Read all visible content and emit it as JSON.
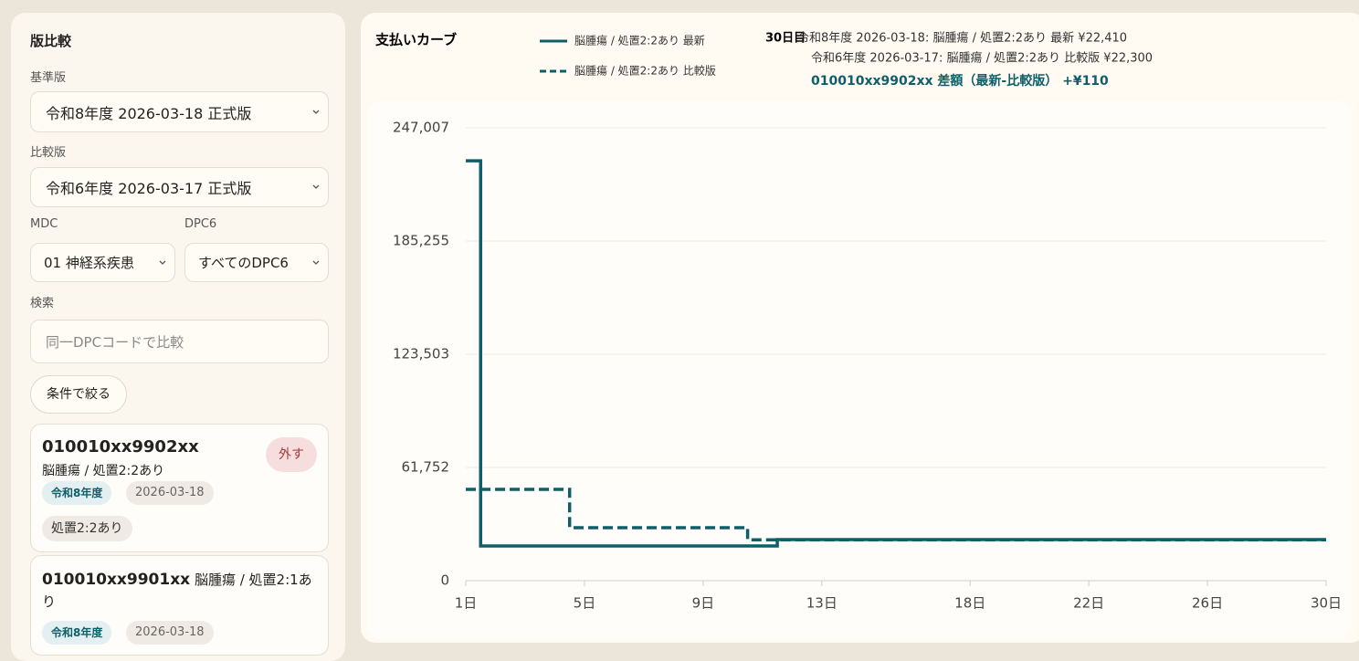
{
  "sidebar": {
    "title": "版比較",
    "base_label": "基準版",
    "base_value": "令和8年度 2026-03-18 正式版",
    "compare_label": "比較版",
    "compare_value": "令和6年度 2026-03-17 正式版",
    "mdc_label": "MDC",
    "mdc_value": "01 神経系疾患",
    "dpc6_label": "DPC6",
    "dpc6_value": "すべてのDPC6",
    "search_label": "検索",
    "search_placeholder": "同一DPCコードで比較",
    "filter_button": "条件で絞る",
    "items": [
      {
        "code": "010010xx9902xx",
        "name": "脳腫瘍 / 処置2:2あり",
        "remove": "外す",
        "fiscal": "令和8年度",
        "date": "2026-03-18",
        "tag": "処置2:2あり"
      },
      {
        "code": "010010xx9901xx",
        "name": "脳腫瘍 / 処置2:1あり",
        "fiscal": "令和8年度",
        "date": "2026-03-18"
      }
    ]
  },
  "chart_data": {
    "type": "step",
    "title": "支払いカーブ",
    "annotations": [
      "30日目",
      "令和8年度 2026-03-18: 脳腫瘍 / 処置2:2あり 最新 ¥22,410",
      "令和6年度 2026-03-17: 脳腫瘍 / 処置2:2あり 比較版 ¥22,300",
      "010010xx9902xx 差額（最新-比較版） +¥110"
    ],
    "x": [
      1,
      2,
      3,
      4,
      5,
      6,
      7,
      8,
      9,
      10,
      11,
      12,
      13,
      14,
      15,
      16,
      17,
      18,
      19,
      20,
      21,
      22,
      23,
      24,
      25,
      26,
      27,
      28,
      29,
      30
    ],
    "series": [
      {
        "name": "脳腫瘍 / 処置2:2あり 最新",
        "color": "#0f5f6b",
        "dash": false,
        "values": [
          229000,
          18900,
          18900,
          18900,
          18900,
          18900,
          18900,
          18900,
          18900,
          18900,
          18900,
          22410,
          22410,
          22410,
          22410,
          22410,
          22410,
          22410,
          22410,
          22410,
          22410,
          22410,
          22410,
          22410,
          22410,
          22410,
          22410,
          22410,
          22410,
          22410
        ]
      },
      {
        "name": "脳腫瘍 / 処置2:2あり 比較版",
        "color": "#0f5f6b",
        "dash": true,
        "values": [
          49800,
          49800,
          49800,
          49800,
          28900,
          28900,
          28900,
          28900,
          28900,
          28900,
          22300,
          22300,
          22300,
          22300,
          22300,
          22300,
          22300,
          22300,
          22300,
          22300,
          22300,
          22300,
          22300,
          22300,
          22300,
          22300,
          22300,
          22300,
          22300,
          22300
        ]
      }
    ],
    "xlim": [
      1,
      30
    ],
    "xticks": [
      {
        "value": 1,
        "label": "1日"
      },
      {
        "value": 5,
        "label": "5日"
      },
      {
        "value": 9,
        "label": "9日"
      },
      {
        "value": 13,
        "label": "13日"
      },
      {
        "value": 18,
        "label": "18日"
      },
      {
        "value": 22,
        "label": "22日"
      },
      {
        "value": 26,
        "label": "26日"
      },
      {
        "value": 30,
        "label": "30日"
      }
    ],
    "ylim": [
      0,
      247007
    ],
    "yticks": [
      0,
      {
        "value": 61752,
        "label": "61,752"
      },
      {
        "value": 123503,
        "label": "123,503"
      },
      {
        "value": 185255,
        "label": "185,255"
      },
      {
        "value": 247007,
        "label": "247,007"
      }
    ],
    "grid": true
  }
}
